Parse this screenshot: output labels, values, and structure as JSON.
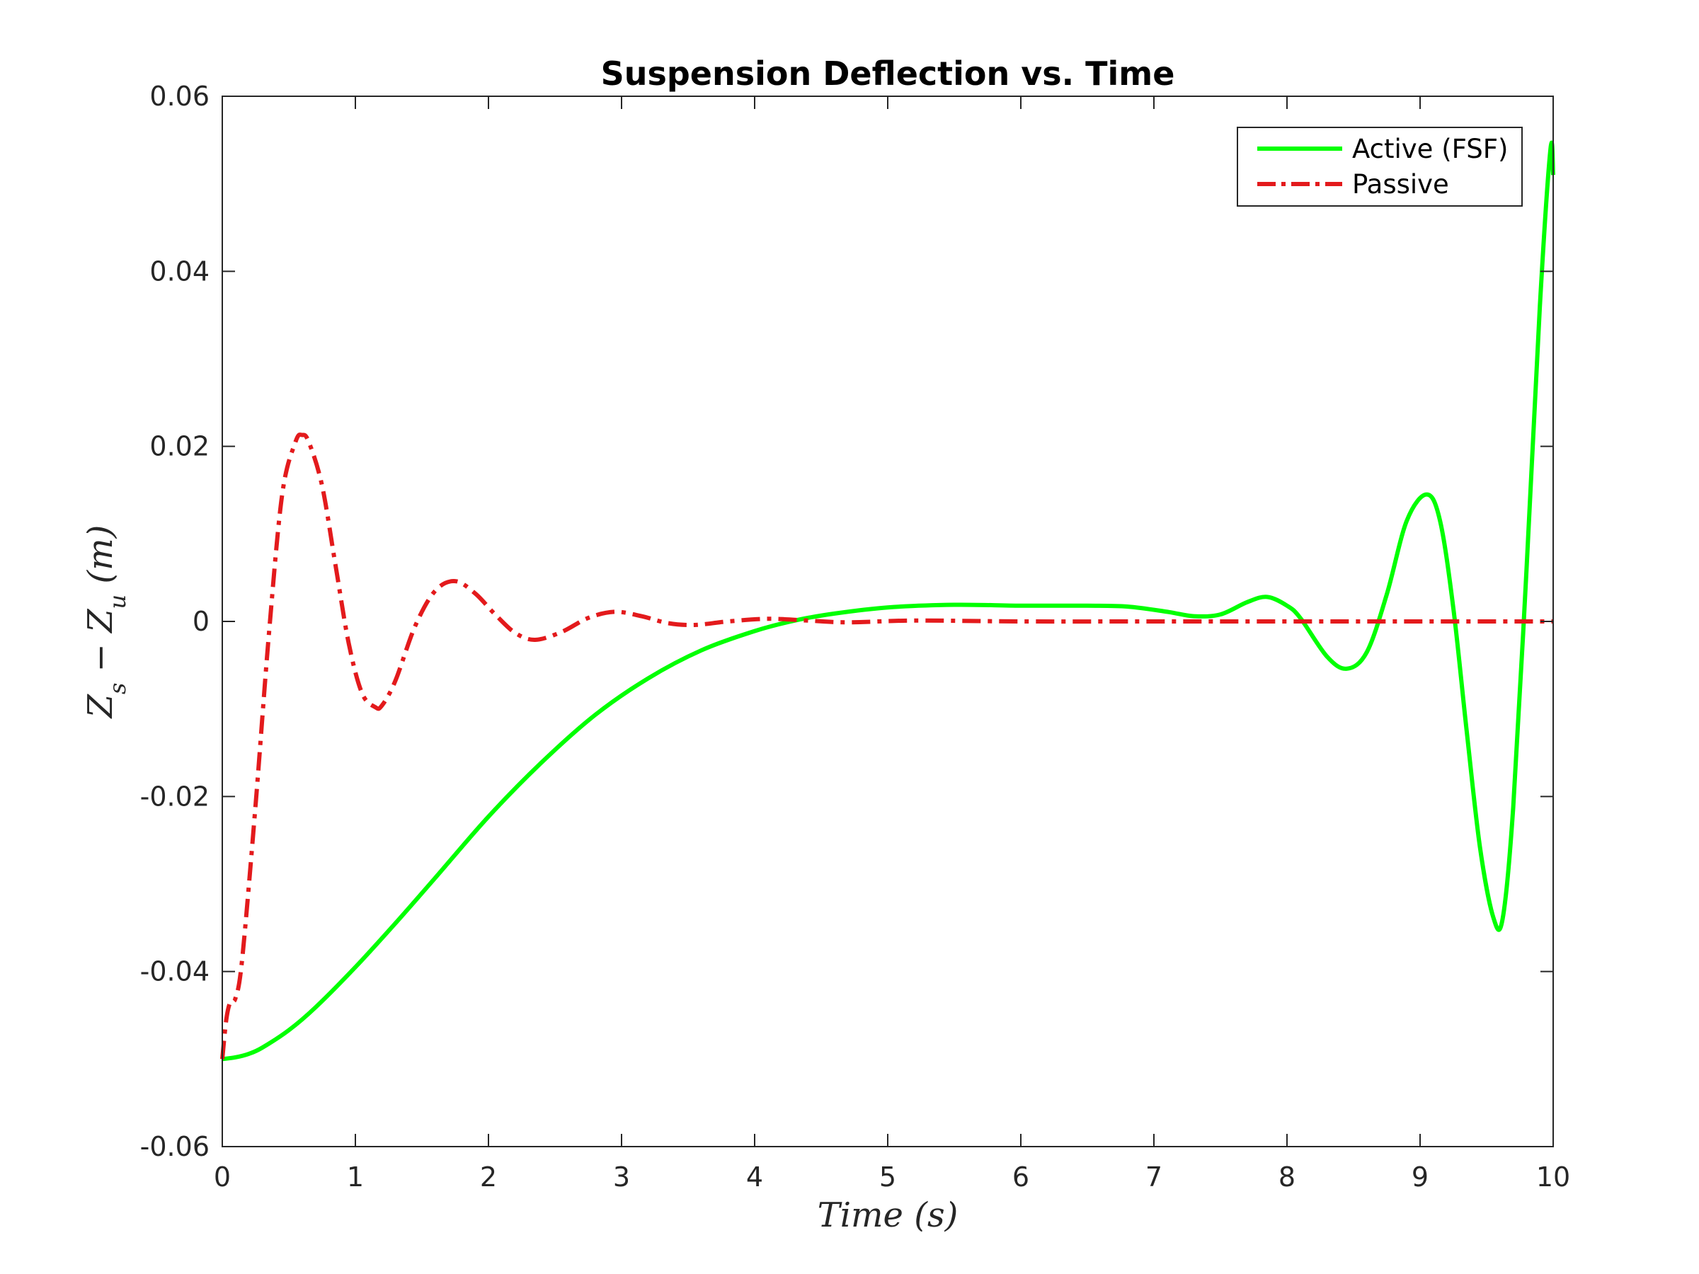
{
  "chart_data": {
    "type": "line",
    "title": "Suspension Deflection vs. Time",
    "xlabel": "Time (s)",
    "ylabel": "Z_s − Z_u (m)",
    "ylabel_parts": {
      "a": "Z",
      "a_sub": "s",
      "op": " − ",
      "b": "Z",
      "b_sub": "u",
      "unit": " (m)"
    },
    "xlim": [
      0,
      10
    ],
    "ylim": [
      -0.06,
      0.06
    ],
    "xticks": [
      0,
      1,
      2,
      3,
      4,
      5,
      6,
      7,
      8,
      9,
      10
    ],
    "yticks": [
      -0.06,
      -0.04,
      -0.02,
      0,
      0.02,
      0.04,
      0.06
    ],
    "ytick_labels": [
      "-0.06",
      "-0.04",
      "-0.02",
      "0",
      "0.02",
      "0.04",
      "0.06"
    ],
    "grid": false,
    "legend_position": "top-right",
    "series": [
      {
        "name": "Active (FSF)",
        "color": "#00ff00",
        "style": "solid",
        "x": [
          0,
          0.1,
          0.2,
          0.3,
          0.5,
          0.7,
          1.0,
          1.3,
          1.6,
          2.0,
          2.4,
          2.8,
          3.2,
          3.6,
          4.0,
          4.3,
          4.6,
          5.0,
          5.5,
          6.0,
          6.5,
          6.8,
          7.1,
          7.3,
          7.5,
          7.7,
          7.85,
          8.0,
          8.1,
          8.3,
          8.45,
          8.6,
          8.75,
          8.9,
          9.05,
          9.15,
          9.25,
          9.35,
          9.45,
          9.55,
          9.62,
          9.7,
          9.8,
          9.9,
          9.98,
          10.0
        ],
        "y": [
          -0.05,
          -0.0498,
          -0.0494,
          -0.0487,
          -0.0467,
          -0.0441,
          -0.0395,
          -0.0345,
          -0.0293,
          -0.0223,
          -0.0161,
          -0.0107,
          -0.0065,
          -0.0033,
          -0.0011,
          0.0001,
          0.0009,
          0.0016,
          0.0019,
          0.0018,
          0.0018,
          0.0017,
          0.0011,
          0.0006,
          0.0008,
          0.0022,
          0.0028,
          0.0018,
          0.0004,
          -0.004,
          -0.0054,
          -0.0035,
          0.0031,
          0.0115,
          0.0145,
          0.0115,
          0.0015,
          -0.0125,
          -0.0258,
          -0.0338,
          -0.034,
          -0.0212,
          0.006,
          0.036,
          0.054,
          0.051
        ]
      },
      {
        "name": "Passive",
        "color": "#e31a1c",
        "style": "dashdot",
        "x": [
          0,
          0.03,
          0.06,
          0.1,
          0.15,
          0.25,
          0.35,
          0.45,
          0.55,
          0.6,
          0.65,
          0.75,
          0.85,
          0.95,
          1.05,
          1.15,
          1.2,
          1.3,
          1.45,
          1.6,
          1.75,
          1.9,
          2.05,
          2.2,
          2.35,
          2.55,
          2.75,
          2.95,
          3.15,
          3.35,
          3.55,
          3.8,
          4.1,
          4.4,
          4.7,
          5.2,
          6.0,
          7.0,
          8.0,
          9.0,
          10.0
        ],
        "y": [
          -0.05,
          -0.0455,
          -0.0435,
          -0.043,
          -0.0385,
          -0.021,
          -0.0015,
          0.0145,
          0.0205,
          0.0213,
          0.0205,
          0.0155,
          0.0065,
          -0.0025,
          -0.0082,
          -0.0098,
          -0.0096,
          -0.0068,
          -0.0005,
          0.0035,
          0.0046,
          0.0032,
          0.0008,
          -0.0013,
          -0.0021,
          -0.0012,
          0.0004,
          0.0011,
          0.0006,
          -0.0002,
          -0.0004,
          0.0,
          0.0003,
          0.0001,
          -0.0001,
          0.0001,
          0.0,
          0.0,
          0.0,
          0.0,
          0.0
        ]
      }
    ]
  }
}
